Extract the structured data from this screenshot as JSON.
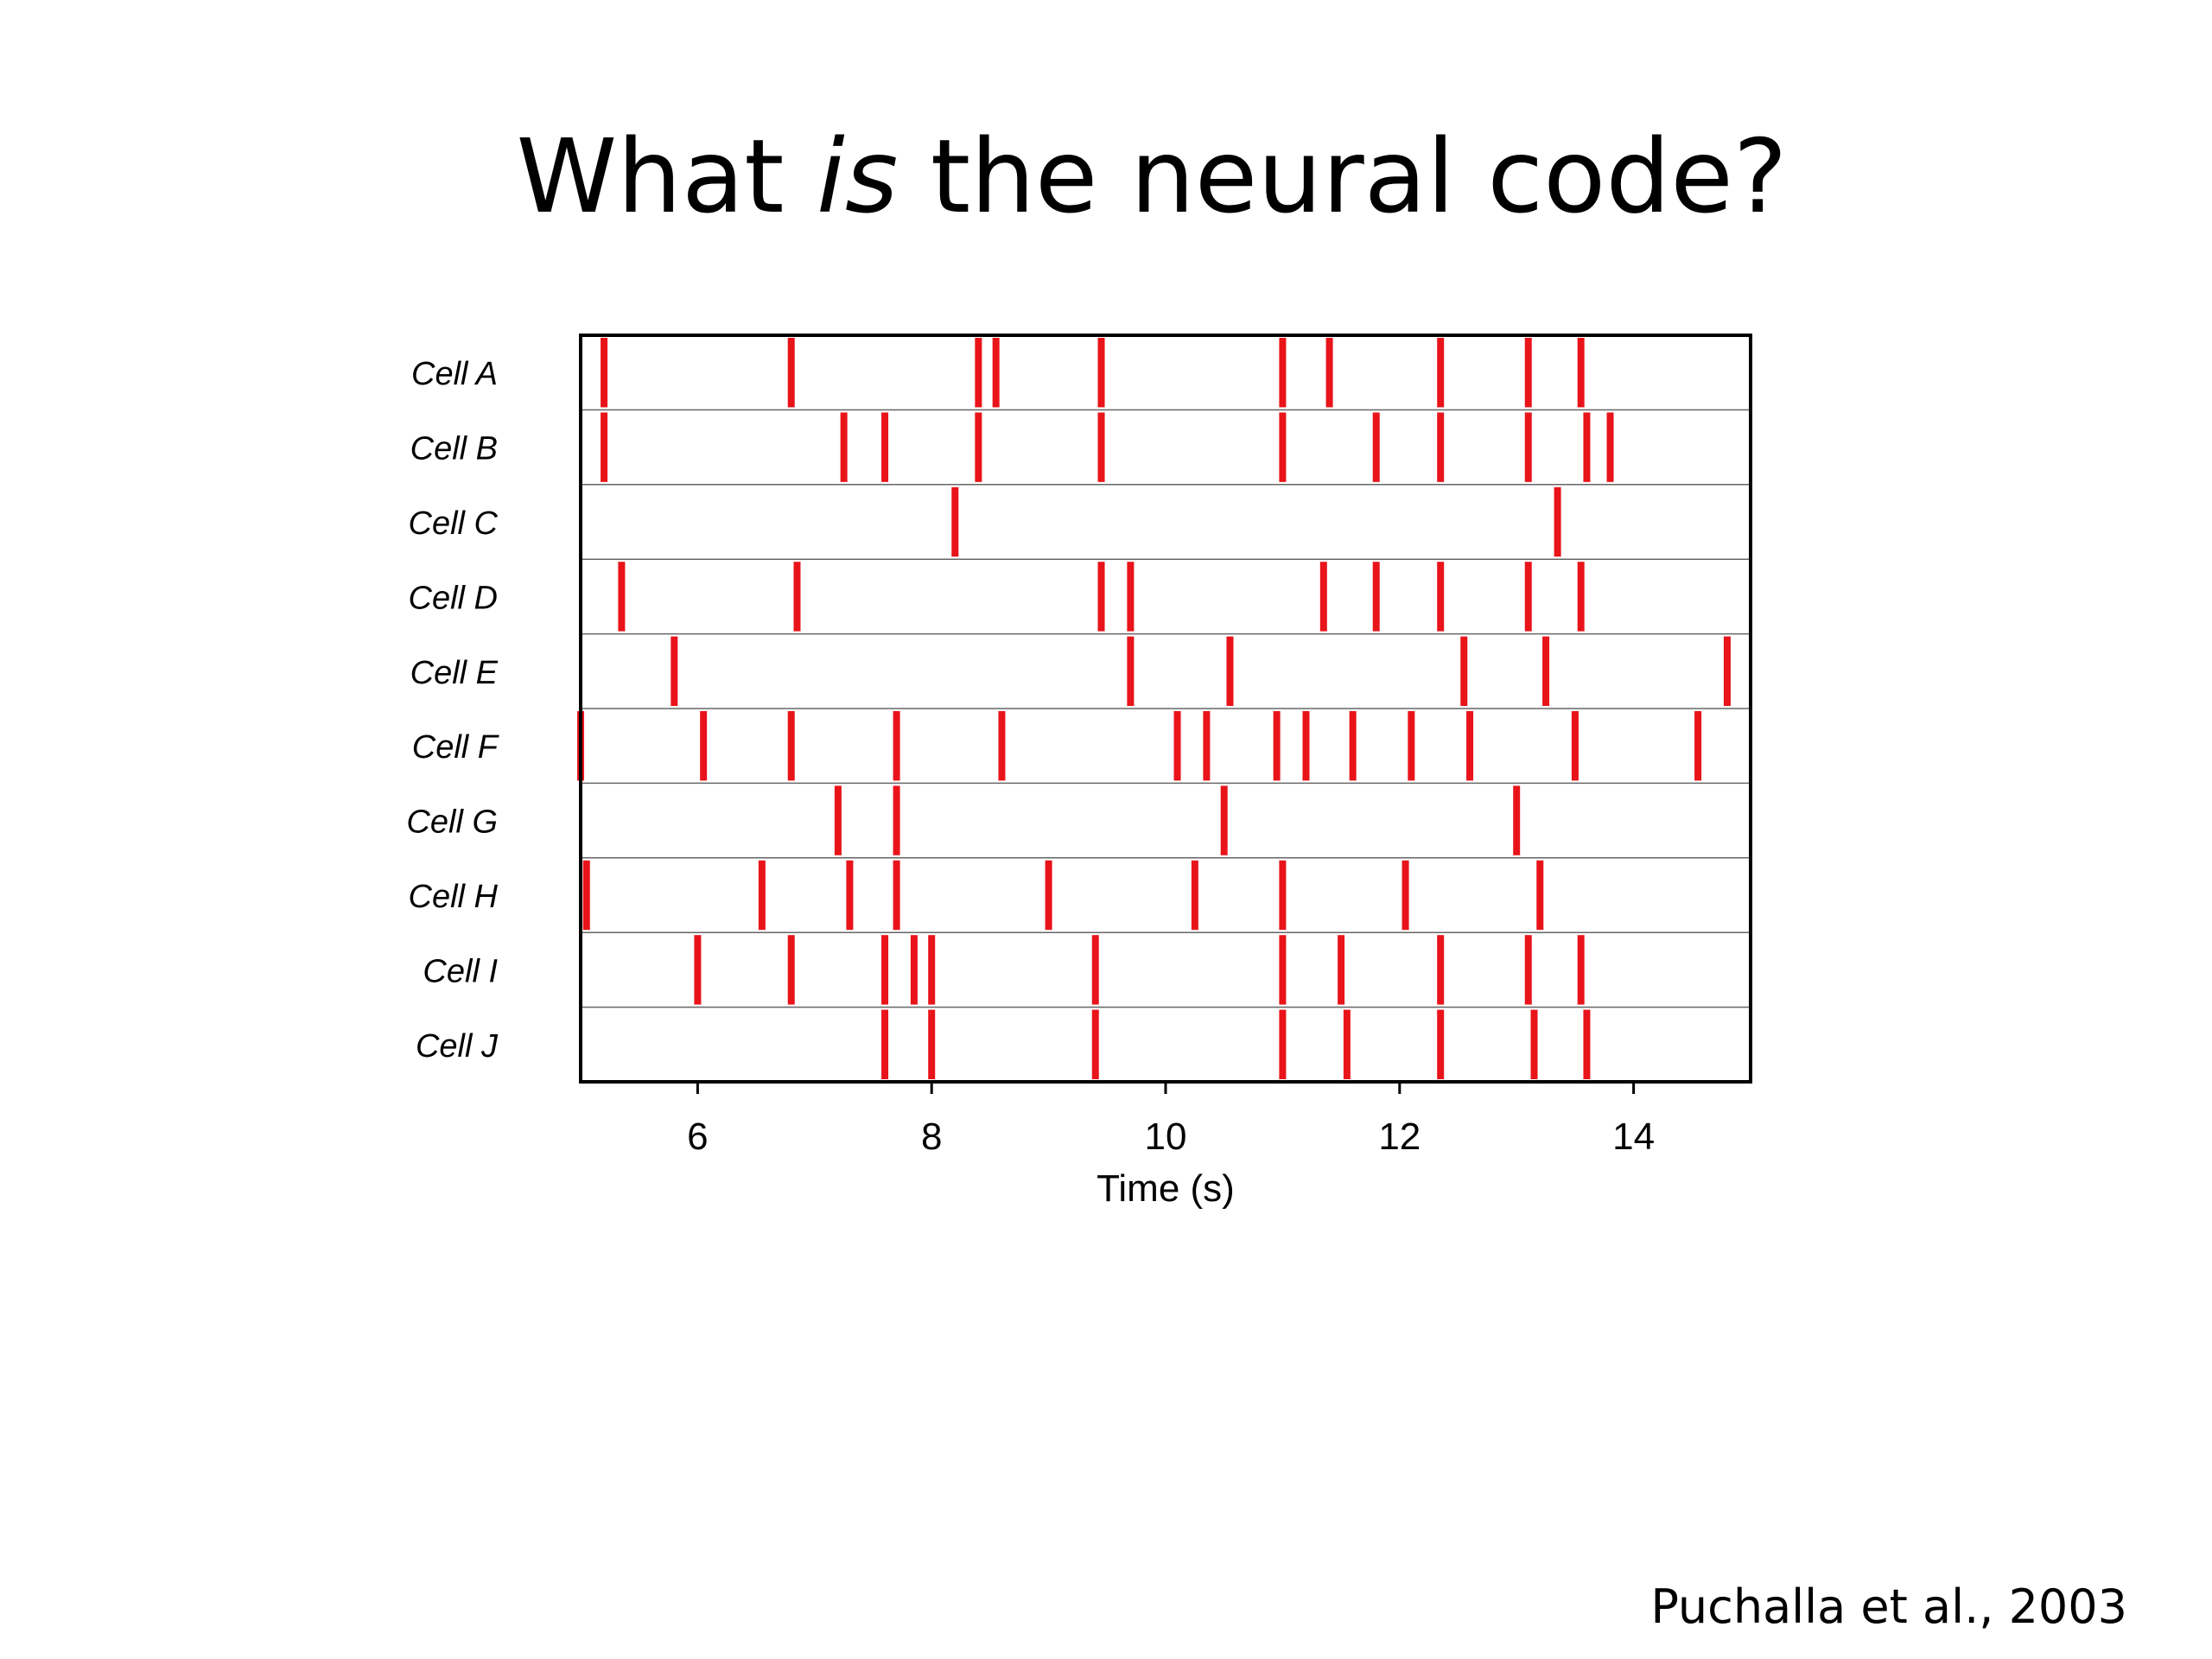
{
  "slide": {
    "title": [
      "What ",
      "is",
      " the neural code?"
    ],
    "citation": "Puchalla et al., 2003"
  },
  "chart_data": {
    "type": "raster",
    "xlabel": "Time (s)",
    "xlim": [
      5,
      15
    ],
    "xticks": [
      6,
      8,
      10,
      12,
      14
    ],
    "color": "#e8141a",
    "series": [
      {
        "name": "Cell A",
        "values": [
          5.2,
          6.8,
          8.4,
          8.55,
          9.45,
          11.0,
          11.4,
          12.35,
          13.1,
          13.55
        ]
      },
      {
        "name": "Cell B",
        "values": [
          5.2,
          7.25,
          7.6,
          8.4,
          9.45,
          11.0,
          11.8,
          12.35,
          13.1,
          13.6,
          13.8
        ]
      },
      {
        "name": "Cell C",
        "values": [
          8.2,
          13.35
        ]
      },
      {
        "name": "Cell D",
        "values": [
          5.35,
          6.85,
          9.45,
          9.7,
          11.35,
          11.8,
          12.35,
          13.1,
          13.55
        ]
      },
      {
        "name": "Cell E",
        "values": [
          5.8,
          9.7,
          10.55,
          12.55,
          13.25,
          14.8
        ]
      },
      {
        "name": "Cell F",
        "values": [
          5.0,
          6.05,
          6.8,
          7.7,
          8.6,
          10.1,
          10.35,
          10.95,
          11.2,
          11.6,
          12.1,
          12.6,
          13.5,
          14.55
        ]
      },
      {
        "name": "Cell G",
        "values": [
          7.2,
          7.7,
          10.5,
          13.0
        ]
      },
      {
        "name": "Cell H",
        "values": [
          5.05,
          6.55,
          7.3,
          7.7,
          9.0,
          10.25,
          11.0,
          12.05,
          13.2
        ]
      },
      {
        "name": "Cell I",
        "values": [
          6.0,
          6.8,
          7.6,
          7.85,
          8.0,
          9.4,
          11.0,
          11.5,
          12.35,
          13.1,
          13.55
        ]
      },
      {
        "name": "Cell J",
        "values": [
          7.6,
          8.0,
          9.4,
          11.0,
          11.55,
          12.35,
          13.15,
          13.6
        ]
      }
    ]
  }
}
